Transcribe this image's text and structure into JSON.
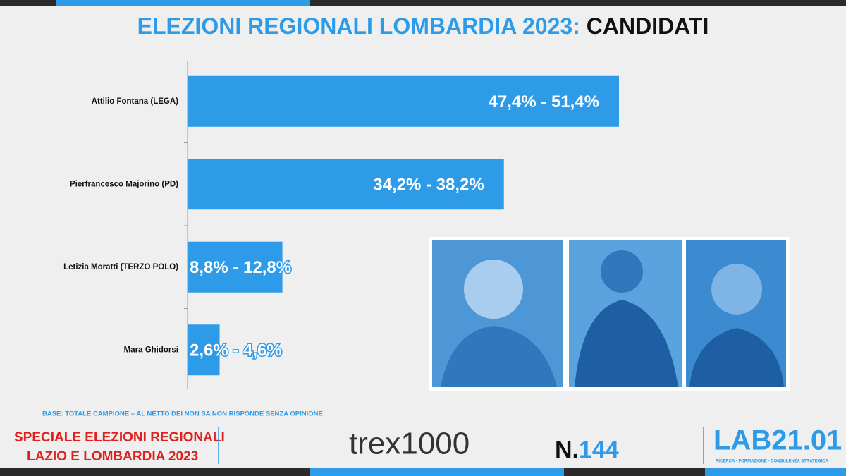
{
  "chart_data": {
    "type": "bar",
    "orientation": "horizontal",
    "title": "ELEZIONI REGIONALI LOMBARDIA 2023:",
    "title_suffix": "CANDIDATI",
    "categories": [
      "Attilio Fontana (LEGA)",
      "Pierfrancesco Majorino (PD)",
      "Letizia Moratti (TERZO POLO)",
      "Mara Ghidorsi"
    ],
    "values": [
      49.4,
      36.2,
      10.8,
      3.6
    ],
    "value_labels": [
      "47,4% - 51,4%",
      "34,2% - 38,2%",
      "8,8% - 12,8%",
      "2,6% - 4,6%"
    ],
    "color": "#2d9be8",
    "note": "BASE: TOTALE CAMPIONE – AL NETTO DEI NON SA NON RISPONDE SENZA OPINIONE"
  },
  "footer": {
    "special_line1": "SPECIALE ELEZIONI REGIONALI",
    "special_line2": "LAZIO E LOMBARDIA 2023",
    "logo": "trex1000",
    "issue_prefix": "N.",
    "issue_number": "144",
    "brand": "LAB21.01",
    "brand_tagline": "RICERCA - FORMAZIONE - CONSULENZA STRATEGICA"
  }
}
